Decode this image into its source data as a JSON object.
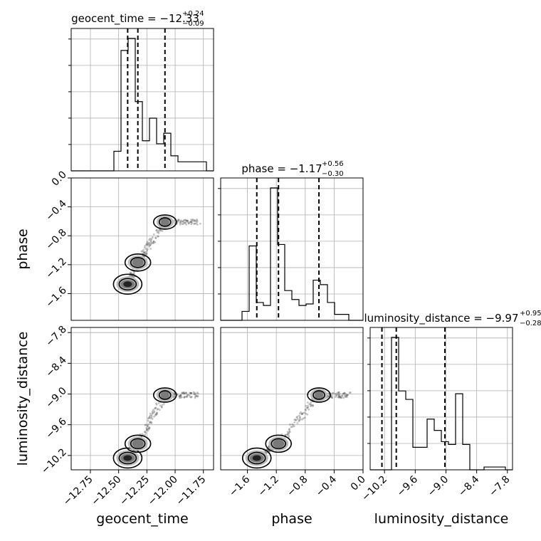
{
  "chart_data": {
    "type": "corner",
    "parameters": [
      "geocent_time",
      "phase",
      "luminosity_distance"
    ],
    "axis_labels": {
      "geocent_time": "geocent_time",
      "phase": "phase",
      "luminosity_distance": "luminosity_distance"
    },
    "titles": [
      {
        "param": "geocent_time",
        "text": "geocent_time = −12.33",
        "sup": "+0.24",
        "sub": "−0.09"
      },
      {
        "param": "phase",
        "text": "phase = −1.17",
        "sup": "+0.56",
        "sub": "−0.30"
      },
      {
        "param": "luminosity_distance",
        "text": "luminosity_distance = −9.97",
        "sup": "+0.95",
        "sub": "−0.28"
      }
    ],
    "ranges": {
      "geocent_time": [
        -12.92,
        -11.66
      ],
      "phase": [
        -1.97,
        0.0
      ],
      "luminosity_distance": [
        -10.48,
        -7.7
      ]
    },
    "ticks": {
      "geocent_time": [
        -12.75,
        -12.5,
        -12.25,
        -12.0,
        -11.75
      ],
      "phase": [
        -1.6,
        -1.2,
        -0.8,
        -0.4,
        0.0
      ],
      "luminosity_distance": [
        -10.2,
        -9.6,
        -9.0,
        -8.4,
        -7.8
      ]
    },
    "tick_labels": {
      "geocent_time": [
        "−12.75",
        "−12.50",
        "−12.25",
        "−12.00",
        "−11.75"
      ],
      "phase": [
        "−1.6",
        "−1.2",
        "−0.8",
        "−0.4",
        "0.0"
      ],
      "luminosity_distance": [
        "−10.2",
        "−9.6",
        "−9.0",
        "−8.4",
        "−7.8"
      ]
    },
    "quantiles": {
      "geocent_time": [
        -12.42,
        -12.33,
        -12.09
      ],
      "phase": [
        -1.47,
        -1.17,
        -0.61
      ],
      "luminosity_distance": [
        -10.25,
        -9.97,
        -9.02
      ]
    },
    "histograms": {
      "geocent_time": {
        "bins": [
          -12.92,
          -12.29
        ],
        "step": 0.063,
        "edges_start": -12.92,
        "bin_width": 0.063,
        "counts": [
          0,
          0,
          0,
          0,
          0,
          0,
          13,
          80,
          88,
          46,
          20,
          35,
          18,
          25,
          10,
          6,
          6,
          6,
          6,
          0
        ]
      },
      "phase": {
        "edges_start": -1.97,
        "bin_width": 0.0985,
        "counts": [
          0,
          0,
          0,
          6,
          50,
          12,
          10,
          89,
          51,
          20,
          14,
          10,
          11,
          27,
          24,
          12,
          4,
          4,
          0,
          0
        ]
      },
      "luminosity_distance": {
        "edges_start": -10.48,
        "bin_width": 0.139,
        "counts": [
          0,
          0,
          0,
          47,
          28,
          25,
          8,
          8,
          18,
          14,
          10,
          9,
          27,
          9,
          0,
          0,
          1,
          1,
          1,
          0
        ]
      }
    },
    "grid": true,
    "levels_shading": [
      "#bdbdbd",
      "#7a7a7a",
      "#222222"
    ]
  }
}
